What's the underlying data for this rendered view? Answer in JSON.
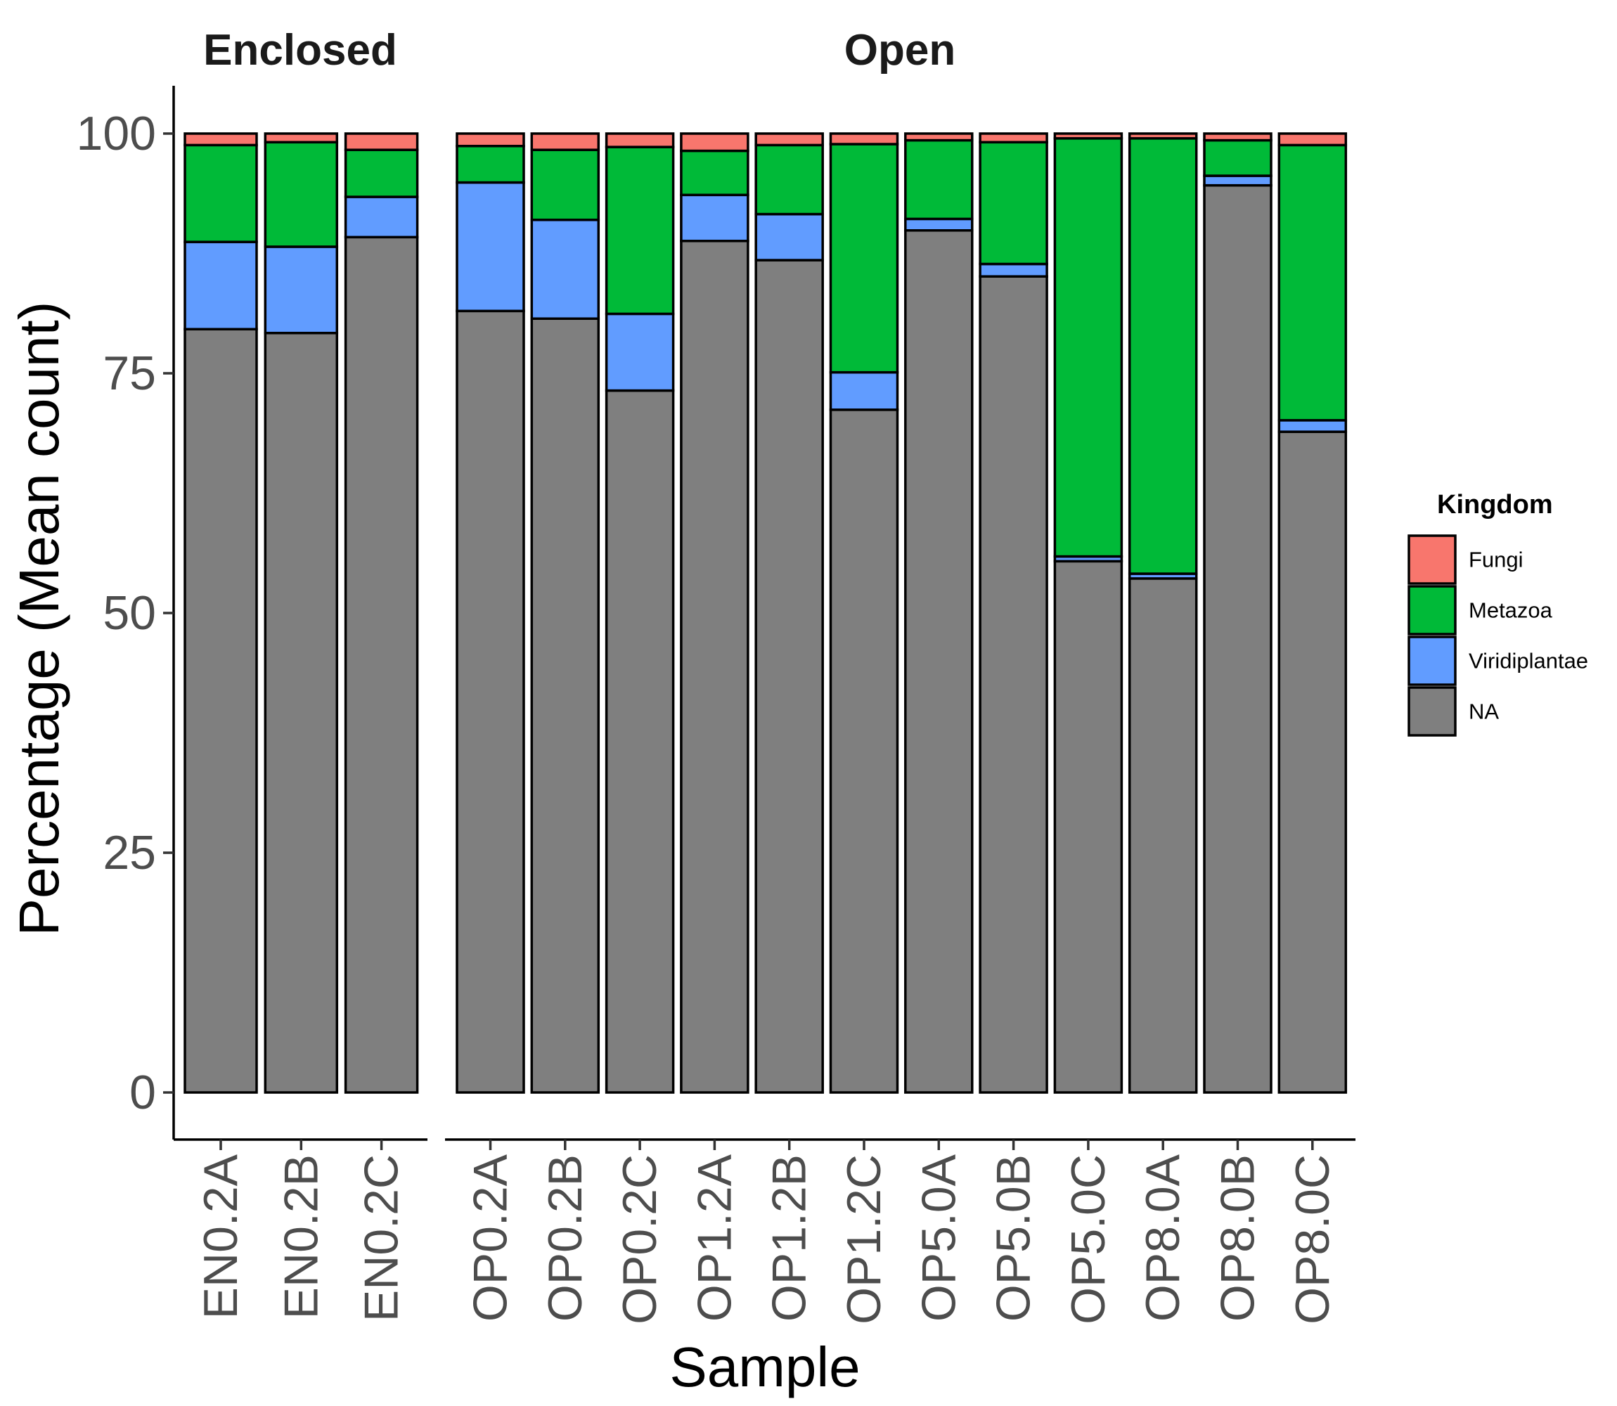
{
  "chart_data": {
    "type": "bar",
    "stacked": true,
    "facets": [
      {
        "title": "Enclosed",
        "categories": [
          "EN0.2A",
          "EN0.2B",
          "EN0.2C"
        ],
        "series": [
          {
            "name": "NA",
            "values": [
              79.6,
              79.2,
              89.2
            ]
          },
          {
            "name": "Viridiplantae",
            "values": [
              9.1,
              9.0,
              4.2
            ]
          },
          {
            "name": "Metazoa",
            "values": [
              10.1,
              10.9,
              4.9
            ]
          },
          {
            "name": "Fungi",
            "values": [
              1.2,
              0.9,
              1.7
            ]
          }
        ]
      },
      {
        "title": "Open",
        "categories": [
          "OP0.2A",
          "OP0.2B",
          "OP0.2C",
          "OP1.2A",
          "OP1.2B",
          "OP1.2C",
          "OP5.0A",
          "OP5.0B",
          "OP5.0C",
          "OP8.0A",
          "OP8.0B",
          "OP8.0C"
        ],
        "series": [
          {
            "name": "NA",
            "values": [
              81.5,
              80.7,
              73.2,
              88.8,
              86.8,
              71.2,
              89.9,
              85.1,
              55.4,
              53.6,
              94.6,
              68.9
            ]
          },
          {
            "name": "Viridiplantae",
            "values": [
              13.4,
              10.3,
              8.0,
              4.8,
              4.8,
              3.9,
              1.2,
              1.3,
              0.5,
              0.5,
              1.0,
              1.2
            ]
          },
          {
            "name": "Metazoa",
            "values": [
              3.8,
              7.3,
              17.4,
              4.6,
              7.2,
              23.8,
              8.2,
              12.7,
              43.6,
              45.4,
              3.7,
              28.7
            ]
          },
          {
            "name": "Fungi",
            "values": [
              1.3,
              1.7,
              1.4,
              1.8,
              1.2,
              1.1,
              0.7,
              0.9,
              0.5,
              0.5,
              0.7,
              1.2
            ]
          }
        ]
      }
    ],
    "xlabel": "Sample",
    "ylabel": "Percentage (Mean count)",
    "ylim": [
      0,
      100
    ],
    "yticks": [
      0,
      25,
      50,
      75,
      100
    ],
    "grid": false,
    "legend": {
      "title": "Kingdom",
      "position": "right",
      "entries": [
        {
          "name": "Fungi",
          "color": "#F8766D"
        },
        {
          "name": "Metazoa",
          "color": "#00BA38"
        },
        {
          "name": "Viridiplantae",
          "color": "#619CFF"
        },
        {
          "name": "NA",
          "color": "#7F7F7F"
        }
      ]
    }
  }
}
